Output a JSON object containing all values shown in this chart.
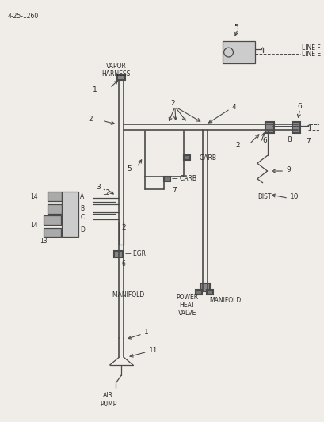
{
  "ref_number": "4-25-1260",
  "background_color": "#f0ede8",
  "line_color": "#4a4a4a",
  "text_color": "#2a2a2a",
  "lw_main": 1.5,
  "lw_thin": 0.9,
  "labels": {
    "vapor_harness": "VAPOR\nHARNESS",
    "air_pump": "AIR\nPUMP",
    "carb": "CARB",
    "manifold1": "MANIFOLD",
    "manifold2": "MANIFOLD",
    "egr": "EGR",
    "dist": "DIST",
    "power_heat_valve": "POWER\nHEAT\nVALVE",
    "line_f": "LINE F",
    "line_e": "LINE E"
  }
}
